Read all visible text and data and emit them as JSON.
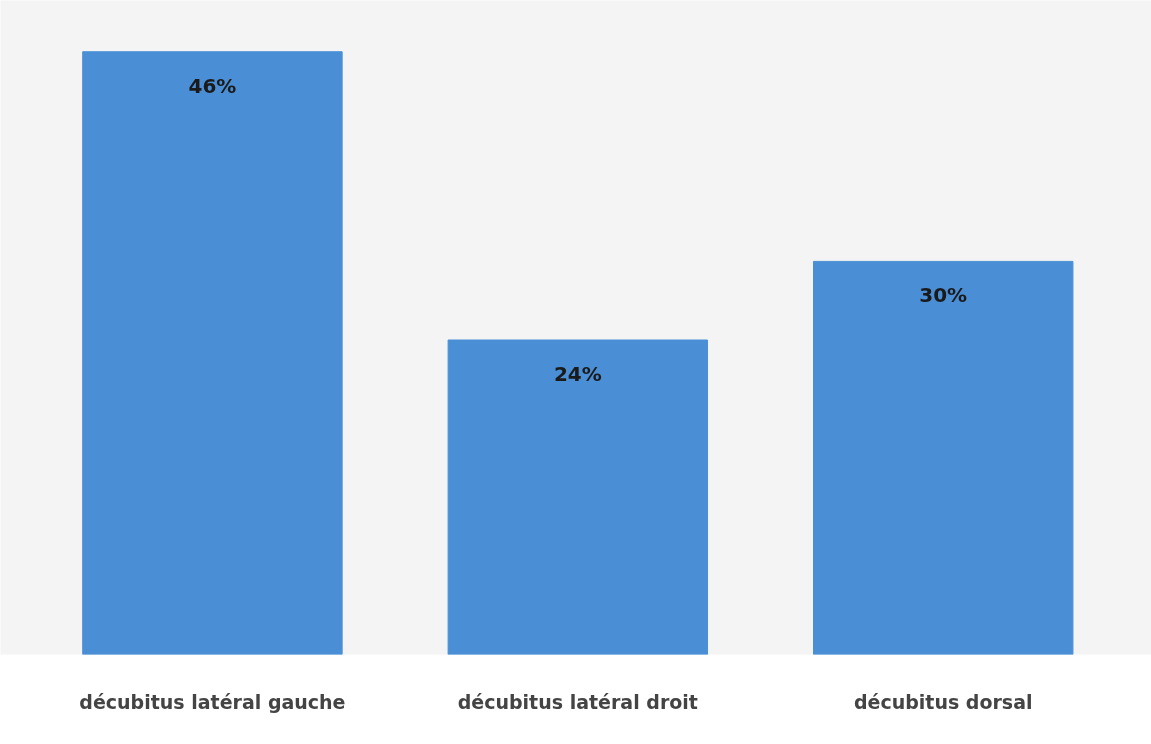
{
  "chart_data": {
    "type": "bar",
    "categories": [
      "décubitus latéral gauche",
      "décubitus latéral droit",
      "décubitus dorsal"
    ],
    "values": [
      46,
      24,
      30
    ],
    "color": "#4a8fd6",
    "data_labels": true,
    "value_labels": [
      "46%",
      "24%",
      "30%"
    ],
    "grid": false
  }
}
